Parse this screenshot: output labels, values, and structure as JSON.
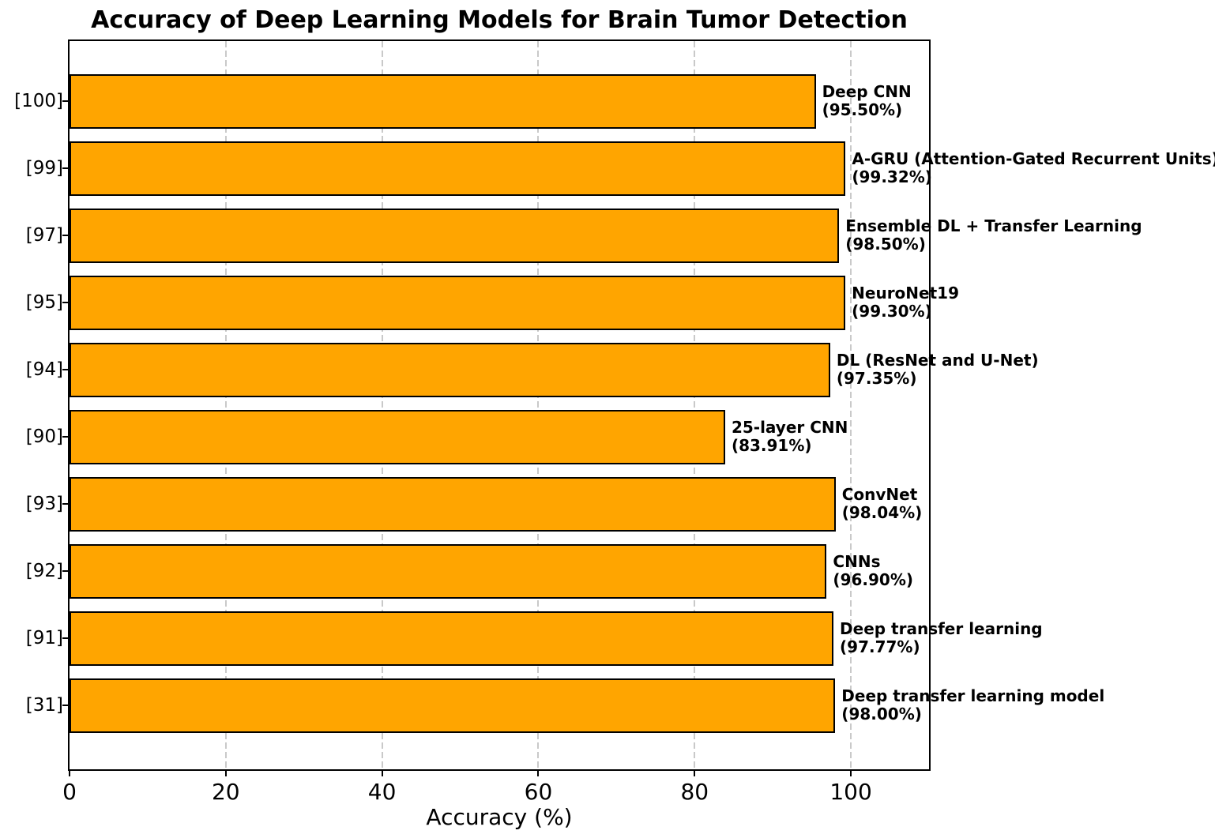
{
  "chart_data": {
    "type": "bar",
    "orientation": "horizontal",
    "title": "Accuracy of Deep Learning Models for Brain Tumor Detection",
    "xlabel": "Accuracy (%)",
    "ylabel": "",
    "xlim": [
      0,
      110
    ],
    "xticks": [
      0,
      20,
      40,
      60,
      80,
      100
    ],
    "grid": {
      "axis": "x",
      "style": "dashed",
      "color": "#c9c9c9"
    },
    "legend": "none",
    "bar_color": "#FFA500",
    "bar_edge_color": "#000000",
    "categories": [
      "[100]",
      "[99]",
      "[97]",
      "[95]",
      "[94]",
      "[90]",
      "[93]",
      "[92]",
      "[91]",
      "[31]"
    ],
    "bars": [
      {
        "reference": "[100]",
        "model": "Deep CNN",
        "accuracy": 95.5,
        "pct_label": "(95.50%)"
      },
      {
        "reference": "[99]",
        "model": "A-GRU (Attention-Gated Recurrent Units)",
        "accuracy": 99.32,
        "pct_label": "(99.32%)"
      },
      {
        "reference": "[97]",
        "model": "Ensemble DL + Transfer Learning",
        "accuracy": 98.5,
        "pct_label": "(98.50%)"
      },
      {
        "reference": "[95]",
        "model": "NeuroNet19",
        "accuracy": 99.3,
        "pct_label": "(99.30%)"
      },
      {
        "reference": "[94]",
        "model": "DL (ResNet and U-Net)",
        "accuracy": 97.35,
        "pct_label": "(97.35%)"
      },
      {
        "reference": "[90]",
        "model": "25-layer CNN",
        "accuracy": 83.91,
        "pct_label": "(83.91%)"
      },
      {
        "reference": "[93]",
        "model": "ConvNet",
        "accuracy": 98.04,
        "pct_label": "(98.04%)"
      },
      {
        "reference": "[92]",
        "model": "CNNs",
        "accuracy": 96.9,
        "pct_label": "(96.90%)"
      },
      {
        "reference": "[91]",
        "model": "Deep transfer learning",
        "accuracy": 97.77,
        "pct_label": "(97.77%)"
      },
      {
        "reference": "[31]",
        "model": "Deep transfer learning model",
        "accuracy": 98.0,
        "pct_label": "(98.00%)"
      }
    ]
  }
}
